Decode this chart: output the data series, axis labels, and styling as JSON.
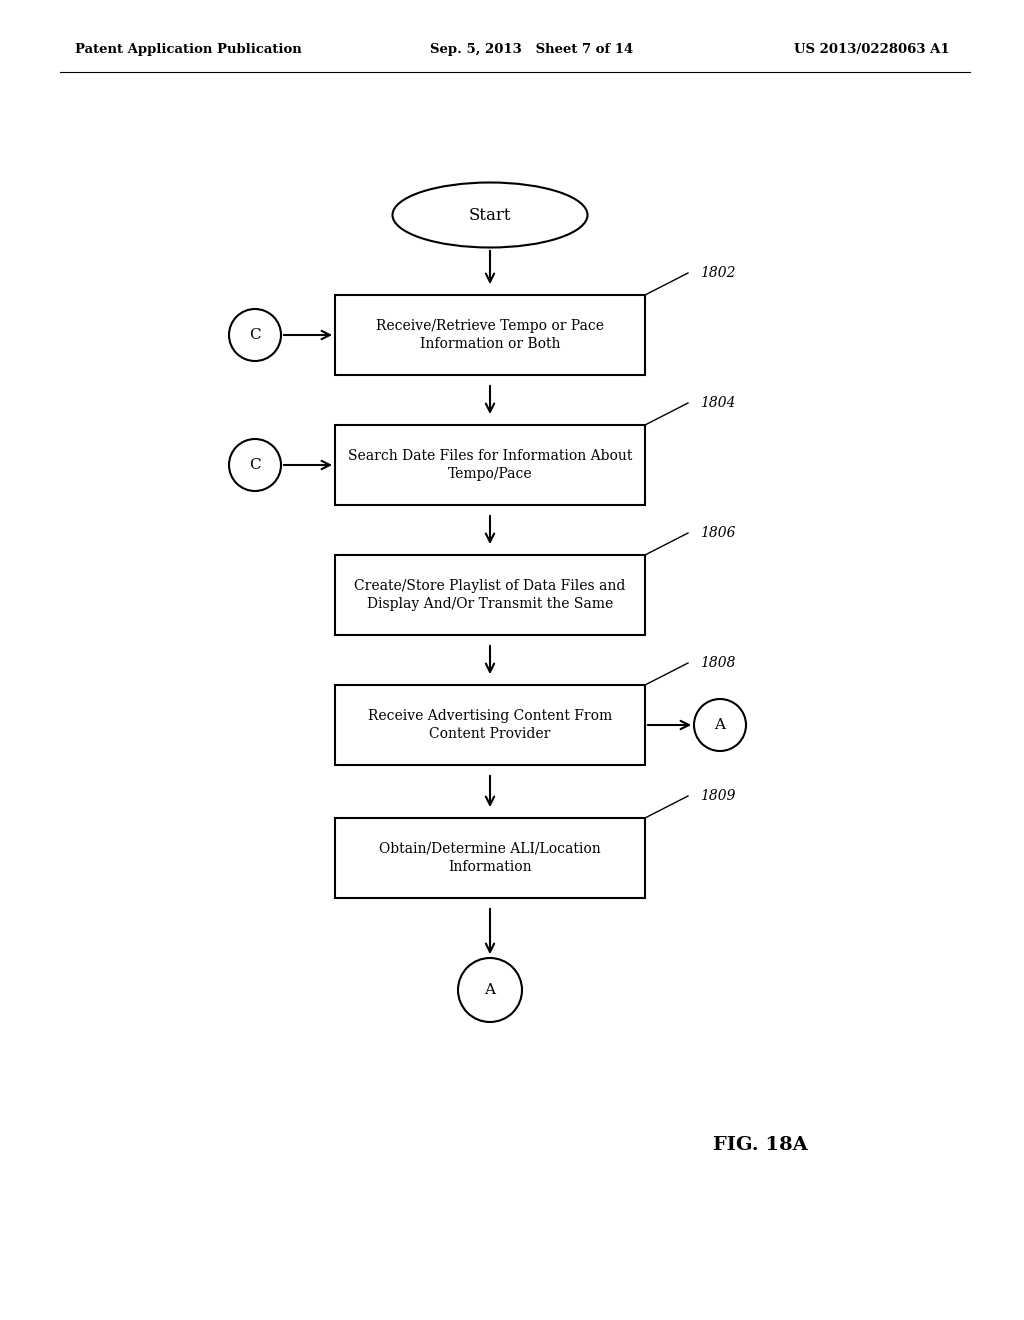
{
  "bg_color": "#ffffff",
  "header_left": "Patent Application Publication",
  "header_center": "Sep. 5, 2013   Sheet 7 of 14",
  "header_right": "US 2013/0228063 A1",
  "fig_label": "FIG. 18A",
  "start_label": "Start",
  "boxes": [
    {
      "id": "1802",
      "label": "Receive/Retrieve Tempo or Pace\nInformation or Both",
      "ref": "1802"
    },
    {
      "id": "1804",
      "label": "Search Date Files for Information About\nTempo/Pace",
      "ref": "1804"
    },
    {
      "id": "1806",
      "label": "Create/Store Playlist of Data Files and\nDisplay And/Or Transmit the Same",
      "ref": "1806"
    },
    {
      "id": "1808",
      "label": "Receive Advertising Content From\nContent Provider",
      "ref": "1808"
    },
    {
      "id": "1809",
      "label": "Obtain/Determine ALI/Location\nInformation",
      "ref": "1809"
    }
  ]
}
